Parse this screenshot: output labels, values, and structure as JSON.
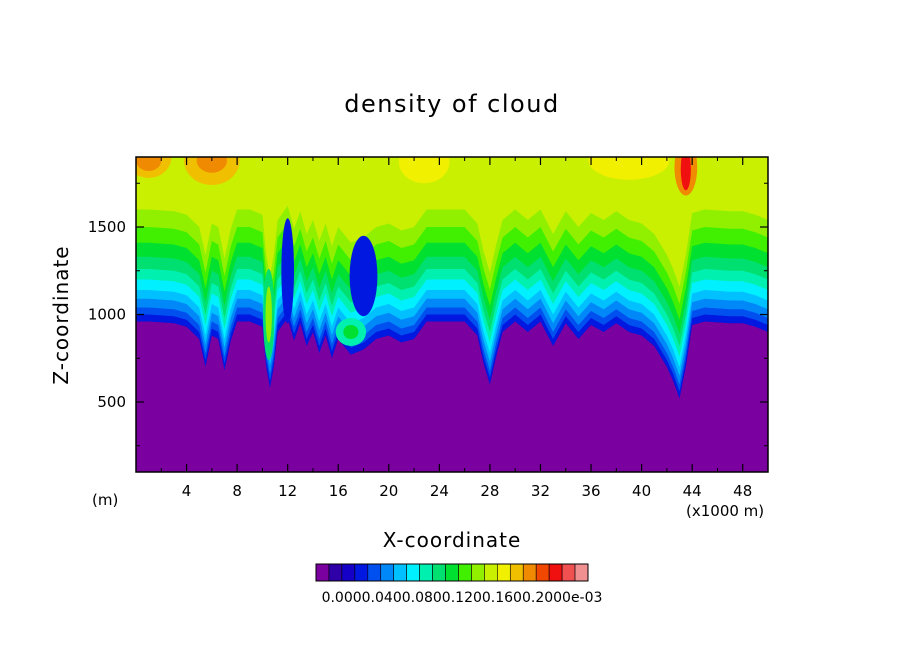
{
  "chart_data": {
    "type": "heatmap",
    "title": "density of cloud",
    "xlabel": "X-coordinate",
    "ylabel": "Z-coordinate",
    "x_unit_left": "(m)",
    "x_unit_right": "(x1000 m)",
    "xlim": [
      0,
      50
    ],
    "ylim": [
      100,
      1900
    ],
    "x_ticks": [
      4,
      8,
      12,
      16,
      20,
      24,
      28,
      32,
      36,
      40,
      44,
      48
    ],
    "y_ticks": [
      500,
      1000,
      1500
    ],
    "colorbar": {
      "colors": [
        "#7a00a0",
        "#2f00a8",
        "#1500c8",
        "#0018e0",
        "#0050f0",
        "#0088f8",
        "#00c0ff",
        "#00f0ff",
        "#00f0b0",
        "#00e070",
        "#00e030",
        "#40f000",
        "#90f000",
        "#c8f000",
        "#f0f000",
        "#f0c000",
        "#f08a00",
        "#f04800",
        "#f01010",
        "#f05050",
        "#f09090"
      ],
      "labels_text": "0.0000.0400.0800.1200.1600.2000e-03",
      "label_values": [
        0.0,
        0.04,
        0.08,
        0.12,
        0.16,
        0.2
      ],
      "label_exponent": "e-03"
    },
    "surface_profile": {
      "x": [
        0,
        1,
        2,
        3,
        4,
        5,
        5.5,
        6,
        6.5,
        7,
        7.5,
        8,
        9,
        10,
        10.3,
        10.6,
        10.9,
        11.2,
        12,
        12.5,
        13,
        13.5,
        14,
        14.5,
        15,
        15.5,
        16,
        17,
        18,
        19,
        20,
        21,
        22,
        23,
        24,
        25,
        26,
        27,
        27.5,
        28,
        28.5,
        29,
        30,
        31,
        32,
        33,
        34,
        35,
        36,
        37,
        38,
        39,
        40,
        41,
        42,
        42.5,
        43,
        43.5,
        44,
        45,
        46,
        47,
        48,
        49,
        50
      ],
      "z": [
        960,
        960,
        955,
        950,
        930,
        860,
        700,
        880,
        860,
        680,
        850,
        960,
        960,
        930,
        700,
        580,
        700,
        900,
        980,
        850,
        950,
        820,
        900,
        780,
        880,
        750,
        860,
        770,
        800,
        860,
        880,
        840,
        860,
        960,
        960,
        960,
        960,
        880,
        720,
        600,
        760,
        900,
        960,
        900,
        960,
        820,
        950,
        860,
        940,
        900,
        950,
        900,
        880,
        820,
        700,
        620,
        520,
        700,
        940,
        960,
        955,
        950,
        950,
        930,
        900
      ]
    },
    "bands": [
      {
        "offset": 0,
        "level": 2
      },
      {
        "offset": 40,
        "level": 3
      },
      {
        "offset": 80,
        "level": 4
      },
      {
        "offset": 130,
        "level": 5
      },
      {
        "offset": 180,
        "level": 6
      },
      {
        "offset": 240,
        "level": 7
      },
      {
        "offset": 300,
        "level": 8
      },
      {
        "offset": 370,
        "level": 9
      },
      {
        "offset": 450,
        "level": 10
      },
      {
        "offset": 540,
        "level": 11
      },
      {
        "offset": 640,
        "level": 12
      },
      {
        "offset": 760,
        "level": 13
      }
    ],
    "hotspots": [
      {
        "x": 1.0,
        "z": 1900,
        "rx": 1.8,
        "rz": 120,
        "level": 15
      },
      {
        "x": 1.0,
        "z": 1880,
        "rx": 1.0,
        "rz": 60,
        "level": 16
      },
      {
        "x": 6.0,
        "z": 1880,
        "rx": 2.2,
        "rz": 140,
        "level": 15
      },
      {
        "x": 6.0,
        "z": 1880,
        "rx": 1.2,
        "rz": 70,
        "level": 16
      },
      {
        "x": 22.8,
        "z": 1870,
        "rx": 2.0,
        "rz": 120,
        "level": 14
      },
      {
        "x": 30.5,
        "z": 1880,
        "rx": 3.5,
        "rz": 90,
        "level": 13
      },
      {
        "x": 39.0,
        "z": 1880,
        "rx": 3.2,
        "rz": 110,
        "level": 14
      },
      {
        "x": 43.5,
        "z": 1840,
        "rx": 0.9,
        "rz": 160,
        "level": 16
      },
      {
        "x": 43.5,
        "z": 1830,
        "rx": 0.4,
        "rz": 120,
        "level": 18
      },
      {
        "x": 10.5,
        "z": 1000,
        "rx": 0.45,
        "rz": 260,
        "level": 9
      },
      {
        "x": 10.5,
        "z": 1000,
        "rx": 0.25,
        "rz": 160,
        "level": 12
      },
      {
        "x": 17.0,
        "z": 900,
        "rx": 1.2,
        "rz": 80,
        "level": 8
      },
      {
        "x": 17.0,
        "z": 900,
        "rx": 0.6,
        "rz": 40,
        "level": 10
      },
      {
        "x": 18.0,
        "z": 1220,
        "rx": 1.1,
        "rz": 230,
        "level": 3
      },
      {
        "x": 12.0,
        "z": 1250,
        "rx": 0.5,
        "rz": 300,
        "level": 3
      }
    ]
  }
}
